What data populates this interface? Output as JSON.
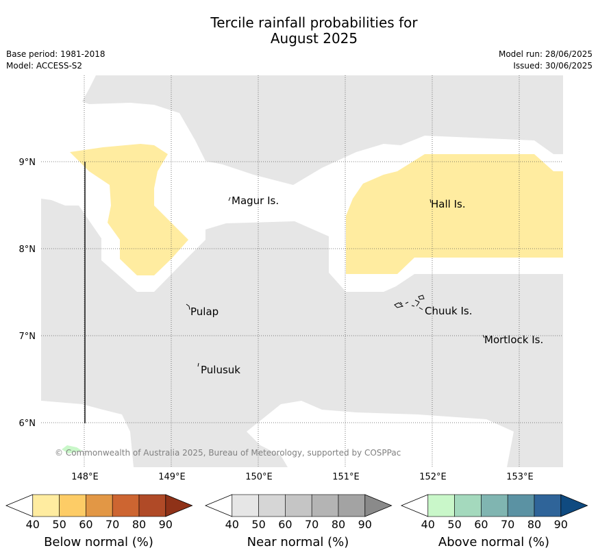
{
  "header": {
    "title_line1": "Tercile rainfall probabilities for",
    "title_line2": "August 2025",
    "base_period": "Base period: 1981-2018",
    "model": "Model: ACCESS-S2",
    "model_run": "Model run: 28/06/2025",
    "issued": "Issued: 30/06/2025"
  },
  "map": {
    "lat_labels": [
      "9°N",
      "8°N",
      "7°N",
      "6°N"
    ],
    "lon_labels": [
      "148°E",
      "149°E",
      "150°E",
      "151°E",
      "152°E",
      "153°E"
    ],
    "islands": [
      "Magur Is.",
      "Hall Is.",
      "Pulap",
      "Chuuk Is.",
      "Mortlock Is.",
      "Pulusuk"
    ],
    "copyright": "© Commonwealth of Australia 2025, Bureau of Meteorology, supported by COSPPac",
    "colors": {
      "background": "#ffffff",
      "near_normal_fill": "#e6e6e6",
      "below_normal_fill": "#ffeca0",
      "above_normal_fill": "#c9f7c9"
    }
  },
  "legends": [
    {
      "label": "Below normal (%)",
      "ticks": [
        "40",
        "50",
        "60",
        "70",
        "80",
        "90"
      ],
      "colors": [
        "#ffeca0",
        "#fdcc66",
        "#e29745",
        "#cd6531",
        "#b04a27",
        "#8f3218"
      ]
    },
    {
      "label": "Near normal (%)",
      "ticks": [
        "40",
        "50",
        "60",
        "70",
        "80",
        "90"
      ],
      "colors": [
        "#e6e6e6",
        "#d6d6d6",
        "#c5c5c5",
        "#b4b4b4",
        "#a3a3a3",
        "#8a8a8a"
      ]
    },
    {
      "label": "Above normal (%)",
      "ticks": [
        "40",
        "50",
        "60",
        "70",
        "80",
        "90"
      ],
      "colors": [
        "#c9f7c9",
        "#a4d9bd",
        "#80b5b1",
        "#5b92a3",
        "#2f6499",
        "#0f4a80"
      ]
    }
  ]
}
